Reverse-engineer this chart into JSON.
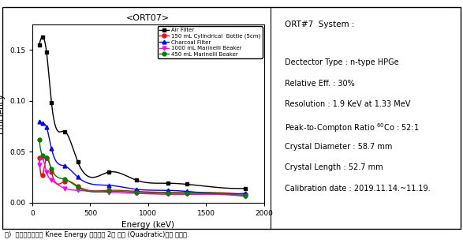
{
  "title": "<ORT07>",
  "xlabel": "Energy (keV)",
  "ylabel": "Efficiency",
  "xlim": [
    0,
    2000
  ],
  "ylim": [
    0.0,
    0.175
  ],
  "yticks": [
    0.0,
    0.05,
    0.1,
    0.15
  ],
  "xticks": [
    0,
    500,
    1000,
    1500,
    2000
  ],
  "series": [
    {
      "label": "Air Filter",
      "color": "black",
      "marker": "s",
      "x": [
        59,
        88,
        122,
        165,
        279,
        392,
        661,
        898,
        1173,
        1332,
        1836
      ],
      "y": [
        0.155,
        0.163,
        0.148,
        0.098,
        0.07,
        0.04,
        0.03,
        0.022,
        0.019,
        0.018,
        0.014
      ]
    },
    {
      "label": "150 mL Cylindrical  Bottle (5cm)",
      "color": "red",
      "marker": "o",
      "x": [
        59,
        88,
        122,
        165,
        279,
        392,
        661,
        898,
        1173,
        1332,
        1836
      ],
      "y": [
        0.044,
        0.027,
        0.044,
        0.03,
        0.021,
        0.016,
        0.012,
        0.011,
        0.01,
        0.01,
        0.008
      ]
    },
    {
      "label": "Charcoal Filter",
      "color": "blue",
      "marker": "^",
      "x": [
        59,
        88,
        122,
        165,
        279,
        392,
        661,
        898,
        1173,
        1332,
        1836
      ],
      "y": [
        0.08,
        0.078,
        0.074,
        0.053,
        0.036,
        0.025,
        0.017,
        0.013,
        0.012,
        0.011,
        0.009
      ]
    },
    {
      "label": "1000 mL Marinelli Beaker",
      "color": "magenta",
      "marker": "v",
      "x": [
        59,
        88,
        122,
        165,
        279,
        392,
        661,
        898,
        1173,
        1332,
        1836
      ],
      "y": [
        0.037,
        0.044,
        0.03,
        0.022,
        0.014,
        0.012,
        0.01,
        0.009,
        0.008,
        0.008,
        0.006
      ]
    },
    {
      "label": "450 mL Marinelli Beaker",
      "color": "green",
      "marker": "o",
      "x": [
        59,
        88,
        122,
        165,
        279,
        392,
        661,
        898,
        1173,
        1332,
        1836
      ],
      "y": [
        0.062,
        0.046,
        0.044,
        0.033,
        0.023,
        0.015,
        0.011,
        0.01,
        0.009,
        0.009,
        0.007
      ]
    }
  ],
  "info_title": "ORT#7  System :",
  "info_lines": [
    "Dectector Type : n-type HPGe",
    "Relative Eff. : 30%",
    "Resolution : 1.9 KeV at 1.33 MeV",
    "Peak-to-Compton Ratio ",
    "Crystal Diameter : 58.7 mm",
    "Crystal Length : 52.7 mm",
    "Calibration date : 2019.11.14.~11.19."
  ],
  "footnote": "주)  효율교정공선은 Knee Energy 기준으로 2차 함수 (Quadratic)식을 사용함."
}
